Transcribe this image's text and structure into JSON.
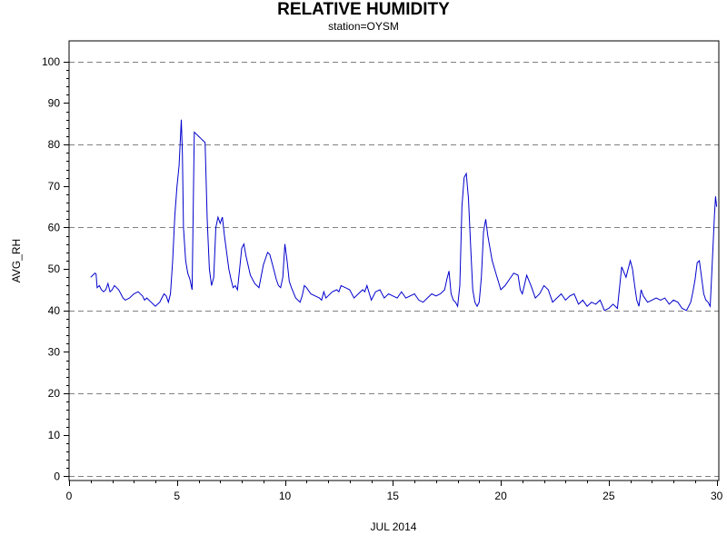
{
  "chart_data": {
    "type": "line",
    "title": "RELATIVE HUMIDITY",
    "subtitle": "station=OYSM",
    "xlabel": "JUL 2014",
    "ylabel": "AVG_RH",
    "xlim": [
      0,
      30.1
    ],
    "ylim": [
      -1,
      105
    ],
    "xticks": [
      0,
      5,
      10,
      15,
      20,
      25,
      30
    ],
    "yticks": [
      0,
      10,
      20,
      30,
      40,
      50,
      60,
      70,
      80,
      90,
      100
    ],
    "grid": "horizontal dashed at 0, 20, 40, 60, 80, 100",
    "legend": "none",
    "line_color": "#0000cc",
    "series": [
      {
        "x": [
          1.0,
          1.1,
          1.2,
          1.25,
          1.3,
          1.4,
          1.5,
          1.6,
          1.7,
          1.8,
          1.9,
          2.0,
          2.1,
          2.2,
          2.3,
          2.4,
          2.5,
          2.6,
          2.8,
          3.0,
          3.2,
          3.4,
          3.5,
          3.6,
          3.8,
          3.9,
          4.0,
          4.1,
          4.2,
          4.3,
          4.4,
          4.5,
          4.6,
          4.7,
          4.8,
          4.9,
          5.0,
          5.1,
          5.2,
          5.25,
          5.3,
          5.4,
          5.5,
          5.6,
          5.7,
          5.8,
          5.9,
          6.0,
          6.1,
          6.2,
          6.3,
          6.4,
          6.5,
          6.6,
          6.7,
          6.8,
          6.9,
          7.0,
          7.1,
          7.2,
          7.3,
          7.4,
          7.5,
          7.6,
          7.7,
          7.8,
          7.9,
          8.0,
          8.1,
          8.2,
          8.4,
          8.6,
          8.8,
          9.0,
          9.2,
          9.3,
          9.4,
          9.5,
          9.6,
          9.7,
          9.8,
          9.9,
          10.0,
          10.1,
          10.2,
          10.3,
          10.5,
          10.7,
          10.8,
          10.9,
          11.0,
          11.2,
          11.4,
          11.6,
          11.7,
          11.8,
          11.9,
          12.0,
          12.2,
          12.4,
          12.5,
          12.6,
          12.8,
          13.0,
          13.2,
          13.4,
          13.6,
          13.7,
          13.8,
          14.0,
          14.2,
          14.4,
          14.6,
          14.8,
          15.0,
          15.2,
          15.4,
          15.6,
          15.8,
          16.0,
          16.2,
          16.4,
          16.6,
          16.8,
          17.0,
          17.2,
          17.4,
          17.5,
          17.6,
          17.7,
          17.8,
          17.9,
          18.0,
          18.1,
          18.2,
          18.3,
          18.4,
          18.5,
          18.6,
          18.7,
          18.8,
          18.9,
          19.0,
          19.1,
          19.2,
          19.3,
          19.4,
          19.5,
          19.6,
          19.8,
          20.0,
          20.2,
          20.4,
          20.6,
          20.8,
          20.9,
          21.0,
          21.2,
          21.4,
          21.6,
          21.8,
          22.0,
          22.2,
          22.4,
          22.6,
          22.8,
          23.0,
          23.2,
          23.4,
          23.6,
          23.8,
          24.0,
          24.2,
          24.4,
          24.6,
          24.8,
          25.0,
          25.2,
          25.4,
          25.6,
          25.8,
          25.9,
          26.0,
          26.1,
          26.2,
          26.3,
          26.4,
          26.5,
          26.6,
          26.8,
          27.0,
          27.2,
          27.4,
          27.6,
          27.8,
          28.0,
          28.2,
          28.4,
          28.6,
          28.8,
          28.9,
          29.0,
          29.1,
          29.2,
          29.3,
          29.4,
          29.5,
          29.6,
          29.7,
          29.8,
          29.9,
          29.95,
          30.0
        ],
        "y": [
          48,
          48.5,
          49,
          48.8,
          45.5,
          46,
          45,
          44.5,
          45,
          46.5,
          44.5,
          45,
          46,
          45.5,
          45,
          44,
          43,
          42.5,
          43,
          44,
          44.5,
          43.5,
          42.5,
          43,
          42,
          41.5,
          41,
          41.5,
          42,
          43,
          44,
          43.5,
          42,
          44,
          52,
          63,
          70,
          75,
          86,
          78,
          60,
          52,
          49,
          47.5,
          45,
          83,
          82.5,
          82,
          81.5,
          81,
          80.5,
          62,
          50,
          46,
          48,
          60,
          62.5,
          61,
          62.5,
          58,
          54,
          50,
          47.5,
          45.5,
          46,
          45,
          50,
          55,
          56,
          53,
          48.5,
          46.5,
          45.5,
          51,
          54,
          53.5,
          51.5,
          49.5,
          47.5,
          46,
          45.5,
          48,
          56,
          52,
          47,
          45.5,
          43,
          42,
          43.5,
          46,
          45.5,
          44,
          43.5,
          43,
          42.5,
          44.5,
          43,
          43.5,
          44.5,
          45,
          44.5,
          46,
          45.5,
          45,
          43,
          44,
          45,
          44.5,
          46,
          42.5,
          44.5,
          45,
          43,
          44,
          43.5,
          43,
          44.5,
          43,
          43.5,
          44,
          42.5,
          42,
          43,
          44,
          43.5,
          44,
          45,
          47.5,
          49.5,
          44,
          42.5,
          42,
          41,
          46,
          65,
          72,
          73,
          67,
          56,
          45,
          42,
          41,
          42,
          48,
          59,
          62,
          58,
          55,
          52,
          48.5,
          45,
          46,
          47.5,
          49,
          48.5,
          45,
          44,
          48.5,
          46,
          43,
          44,
          46,
          45,
          42,
          43,
          44,
          42.5,
          43.5,
          44,
          41.5,
          42.5,
          41,
          42,
          41.5,
          42.5,
          40,
          40.5,
          41.5,
          40.5,
          50.5,
          48,
          50,
          52,
          50,
          46,
          42.5,
          41,
          45,
          43.5,
          42,
          42.5,
          43,
          42.5,
          43,
          41.5,
          42.5,
          42,
          40.5,
          40,
          42,
          44.5,
          47.5,
          51.5,
          52,
          48,
          44,
          42.5,
          42,
          41,
          52,
          63,
          67.5,
          65
        ]
      }
    ]
  }
}
